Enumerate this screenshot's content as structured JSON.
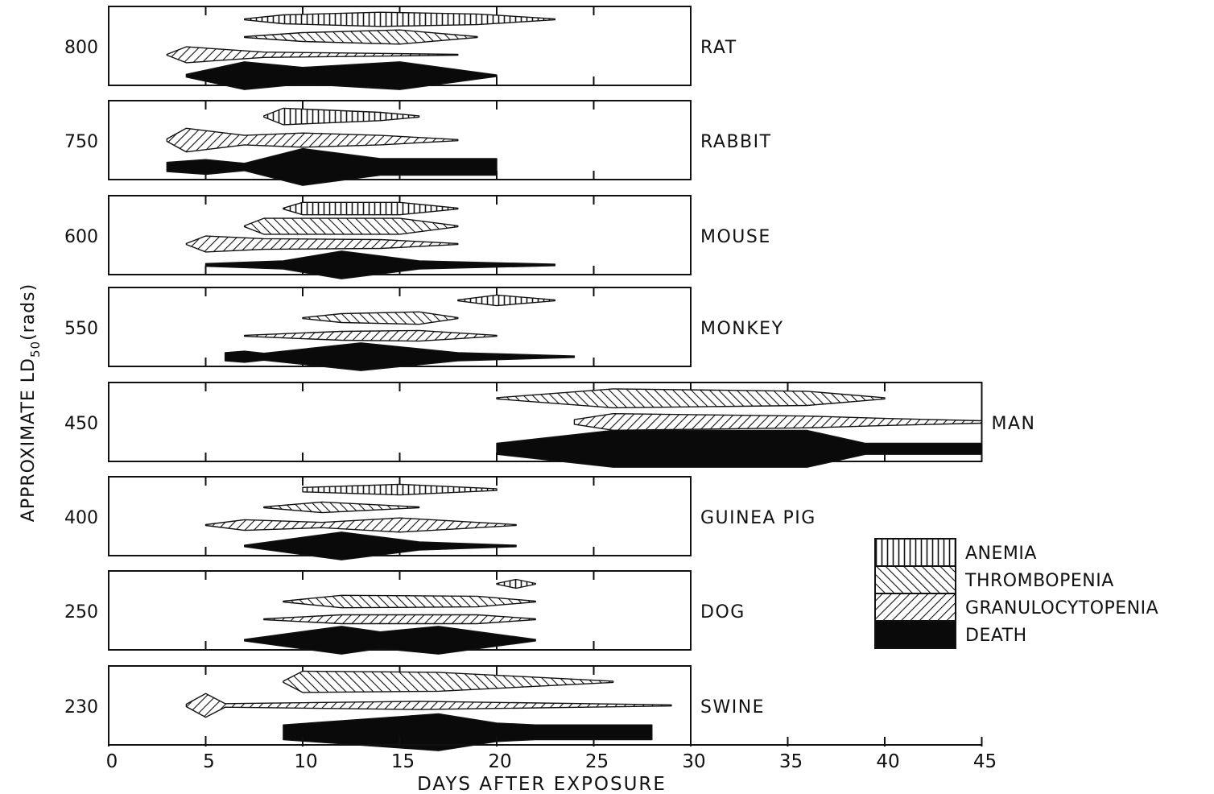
{
  "chart_data": {
    "type": "area",
    "title": "",
    "xlabel": "DAYS AFTER EXPOSURE",
    "ylabel_parts": {
      "pre": "APPROXIMATE LD",
      "sub": "50",
      "post": "(rads)"
    },
    "xlim": [
      0,
      45
    ],
    "x_ticks": [
      "0",
      "5",
      "10",
      "15",
      "20",
      "25",
      "30",
      "35",
      "40",
      "45"
    ],
    "legend_position": "right-middle",
    "legend": [
      {
        "key": "anemia",
        "label": "ANEMIA"
      },
      {
        "key": "thrombopenia",
        "label": "THROMBOPENIA"
      },
      {
        "key": "granulocytopenia",
        "label": "GRANULOCYTOPENIA"
      },
      {
        "key": "death",
        "label": "DEATH"
      }
    ],
    "panels": [
      {
        "species": "RAT",
        "ld50": "800",
        "xmax": 30,
        "bands": [
          {
            "type": "anemia",
            "profile": [
              [
                7,
                0.05
              ],
              [
                9,
                0.5
              ],
              [
                14,
                0.8
              ],
              [
                19,
                0.6
              ],
              [
                23,
                0.05
              ]
            ]
          },
          {
            "type": "thrombopenia",
            "profile": [
              [
                7,
                0.05
              ],
              [
                10,
                0.5
              ],
              [
                15,
                0.8
              ],
              [
                19,
                0.05
              ]
            ]
          },
          {
            "type": "granulocytopenia",
            "profile": [
              [
                3,
                0.05
              ],
              [
                4,
                0.9
              ],
              [
                8,
                0.3
              ],
              [
                14,
                0.15
              ],
              [
                18,
                0.05
              ]
            ]
          },
          {
            "type": "death",
            "profile": [
              [
                4,
                0.1
              ],
              [
                7,
                1.0
              ],
              [
                10,
                0.6
              ],
              [
                15,
                1.0
              ],
              [
                20,
                0.05
              ]
            ]
          }
        ]
      },
      {
        "species": "RABBIT",
        "ld50": "750",
        "xmax": 30,
        "bands": [
          {
            "type": "anemia",
            "profile": [
              [
                8,
                0.05
              ],
              [
                9,
                0.7
              ],
              [
                14,
                0.35
              ],
              [
                16,
                0.05
              ]
            ]
          },
          {
            "type": "granulocytopenia",
            "profile": [
              [
                3,
                0.1
              ],
              [
                4,
                1.0
              ],
              [
                7,
                0.4
              ],
              [
                10,
                0.6
              ],
              [
                14,
                0.4
              ],
              [
                18,
                0.05
              ]
            ]
          },
          {
            "type": "death",
            "profile": [
              [
                3,
                0.25
              ],
              [
                5,
                0.4
              ],
              [
                7,
                0.2
              ],
              [
                10,
                1.0
              ],
              [
                14,
                0.45
              ],
              [
                18,
                0.45
              ],
              [
                20,
                0.45
              ]
            ]
          }
        ]
      },
      {
        "species": "MOUSE",
        "ld50": "600",
        "xmax": 30,
        "bands": [
          {
            "type": "anemia",
            "profile": [
              [
                9,
                0.05
              ],
              [
                10,
                0.7
              ],
              [
                15,
                0.7
              ],
              [
                18,
                0.05
              ]
            ]
          },
          {
            "type": "thrombopenia",
            "profile": [
              [
                7,
                0.05
              ],
              [
                8,
                0.9
              ],
              [
                15,
                0.9
              ],
              [
                18,
                0.05
              ]
            ]
          },
          {
            "type": "granulocytopenia",
            "profile": [
              [
                4,
                0.05
              ],
              [
                5,
                0.9
              ],
              [
                8,
                0.6
              ],
              [
                14,
                0.5
              ],
              [
                18,
                0.05
              ]
            ]
          },
          {
            "type": "death",
            "profile": [
              [
                5,
                0.1
              ],
              [
                9,
                0.3
              ],
              [
                12,
                1.0
              ],
              [
                16,
                0.3
              ],
              [
                23,
                0.05
              ]
            ]
          }
        ]
      },
      {
        "species": "MONKEY",
        "ld50": "550",
        "xmax": 30,
        "bands": [
          {
            "type": "anemia",
            "profile": [
              [
                18,
                0.05
              ],
              [
                20,
                0.6
              ],
              [
                23,
                0.05
              ]
            ]
          },
          {
            "type": "thrombopenia",
            "profile": [
              [
                10,
                0.05
              ],
              [
                12,
                0.5
              ],
              [
                16,
                0.7
              ],
              [
                18,
                0.05
              ]
            ]
          },
          {
            "type": "granulocytopenia",
            "profile": [
              [
                7,
                0.05
              ],
              [
                12,
                0.5
              ],
              [
                16,
                0.6
              ],
              [
                20,
                0.05
              ]
            ]
          },
          {
            "type": "death",
            "profile": [
              [
                6,
                0.3
              ],
              [
                7,
                0.4
              ],
              [
                8,
                0.25
              ],
              [
                13,
                1.0
              ],
              [
                18,
                0.3
              ],
              [
                24,
                0.05
              ]
            ]
          }
        ]
      },
      {
        "species": "MAN",
        "ld50": "450",
        "xmax": 45,
        "bands": [
          {
            "type": "thrombopenia",
            "profile": [
              [
                20,
                0.05
              ],
              [
                26,
                0.8
              ],
              [
                36,
                0.6
              ],
              [
                40,
                0.05
              ]
            ]
          },
          {
            "type": "granulocytopenia",
            "profile": [
              [
                24,
                0.2
              ],
              [
                26,
                0.7
              ],
              [
                36,
                0.5
              ],
              [
                40,
                0.3
              ],
              [
                45,
                0.1
              ]
            ]
          },
          {
            "type": "death",
            "profile": [
              [
                20,
                0.3
              ],
              [
                26,
                1.0
              ],
              [
                36,
                1.0
              ],
              [
                39,
                0.3
              ],
              [
                45,
                0.3
              ]
            ]
          }
        ]
      },
      {
        "species": "GUINEA PIG",
        "ld50": "400",
        "xmax": 30,
        "bands": [
          {
            "type": "anemia",
            "profile": [
              [
                10,
                0.25
              ],
              [
                15,
                0.6
              ],
              [
                20,
                0.1
              ]
            ]
          },
          {
            "type": "thrombopenia",
            "profile": [
              [
                8,
                0.05
              ],
              [
                11,
                0.6
              ],
              [
                16,
                0.05
              ]
            ]
          },
          {
            "type": "granulocytopenia",
            "profile": [
              [
                5,
                0.05
              ],
              [
                7,
                0.6
              ],
              [
                11,
                0.3
              ],
              [
                15,
                0.8
              ],
              [
                21,
                0.05
              ]
            ]
          },
          {
            "type": "death",
            "profile": [
              [
                7,
                0.05
              ],
              [
                12,
                1.0
              ],
              [
                16,
                0.3
              ],
              [
                21,
                0.05
              ]
            ]
          }
        ]
      },
      {
        "species": "DOG",
        "ld50": "250",
        "xmax": 30,
        "bands": [
          {
            "type": "anemia",
            "profile": [
              [
                20,
                0.05
              ],
              [
                21,
                0.5
              ],
              [
                22,
                0.05
              ]
            ]
          },
          {
            "type": "thrombopenia",
            "profile": [
              [
                9,
                0.05
              ],
              [
                12,
                0.7
              ],
              [
                19,
                0.6
              ],
              [
                22,
                0.05
              ]
            ]
          },
          {
            "type": "granulocytopenia",
            "profile": [
              [
                8,
                0.05
              ],
              [
                12,
                0.5
              ],
              [
                19,
                0.5
              ],
              [
                22,
                0.05
              ]
            ]
          },
          {
            "type": "death",
            "profile": [
              [
                7,
                0.05
              ],
              [
                12,
                1.0
              ],
              [
                14,
                0.6
              ],
              [
                17,
                1.0
              ],
              [
                22,
                0.05
              ]
            ]
          }
        ]
      },
      {
        "species": "SWINE",
        "ld50": "230",
        "xmax": 30,
        "bands": [
          {
            "type": "thrombopenia",
            "profile": [
              [
                9,
                0.05
              ],
              [
                10,
                0.9
              ],
              [
                17,
                0.8
              ],
              [
                26,
                0.05
              ]
            ]
          },
          {
            "type": "granulocytopenia",
            "profile": [
              [
                4,
                0.1
              ],
              [
                5,
                1.0
              ],
              [
                6,
                0.15
              ],
              [
                16,
                0.35
              ],
              [
                29,
                0.05
              ]
            ]
          },
          {
            "type": "death",
            "profile": [
              [
                9,
                0.4
              ],
              [
                17,
                1.0
              ],
              [
                20,
                0.5
              ],
              [
                22,
                0.4
              ],
              [
                28,
                0.4
              ]
            ]
          }
        ]
      }
    ]
  }
}
